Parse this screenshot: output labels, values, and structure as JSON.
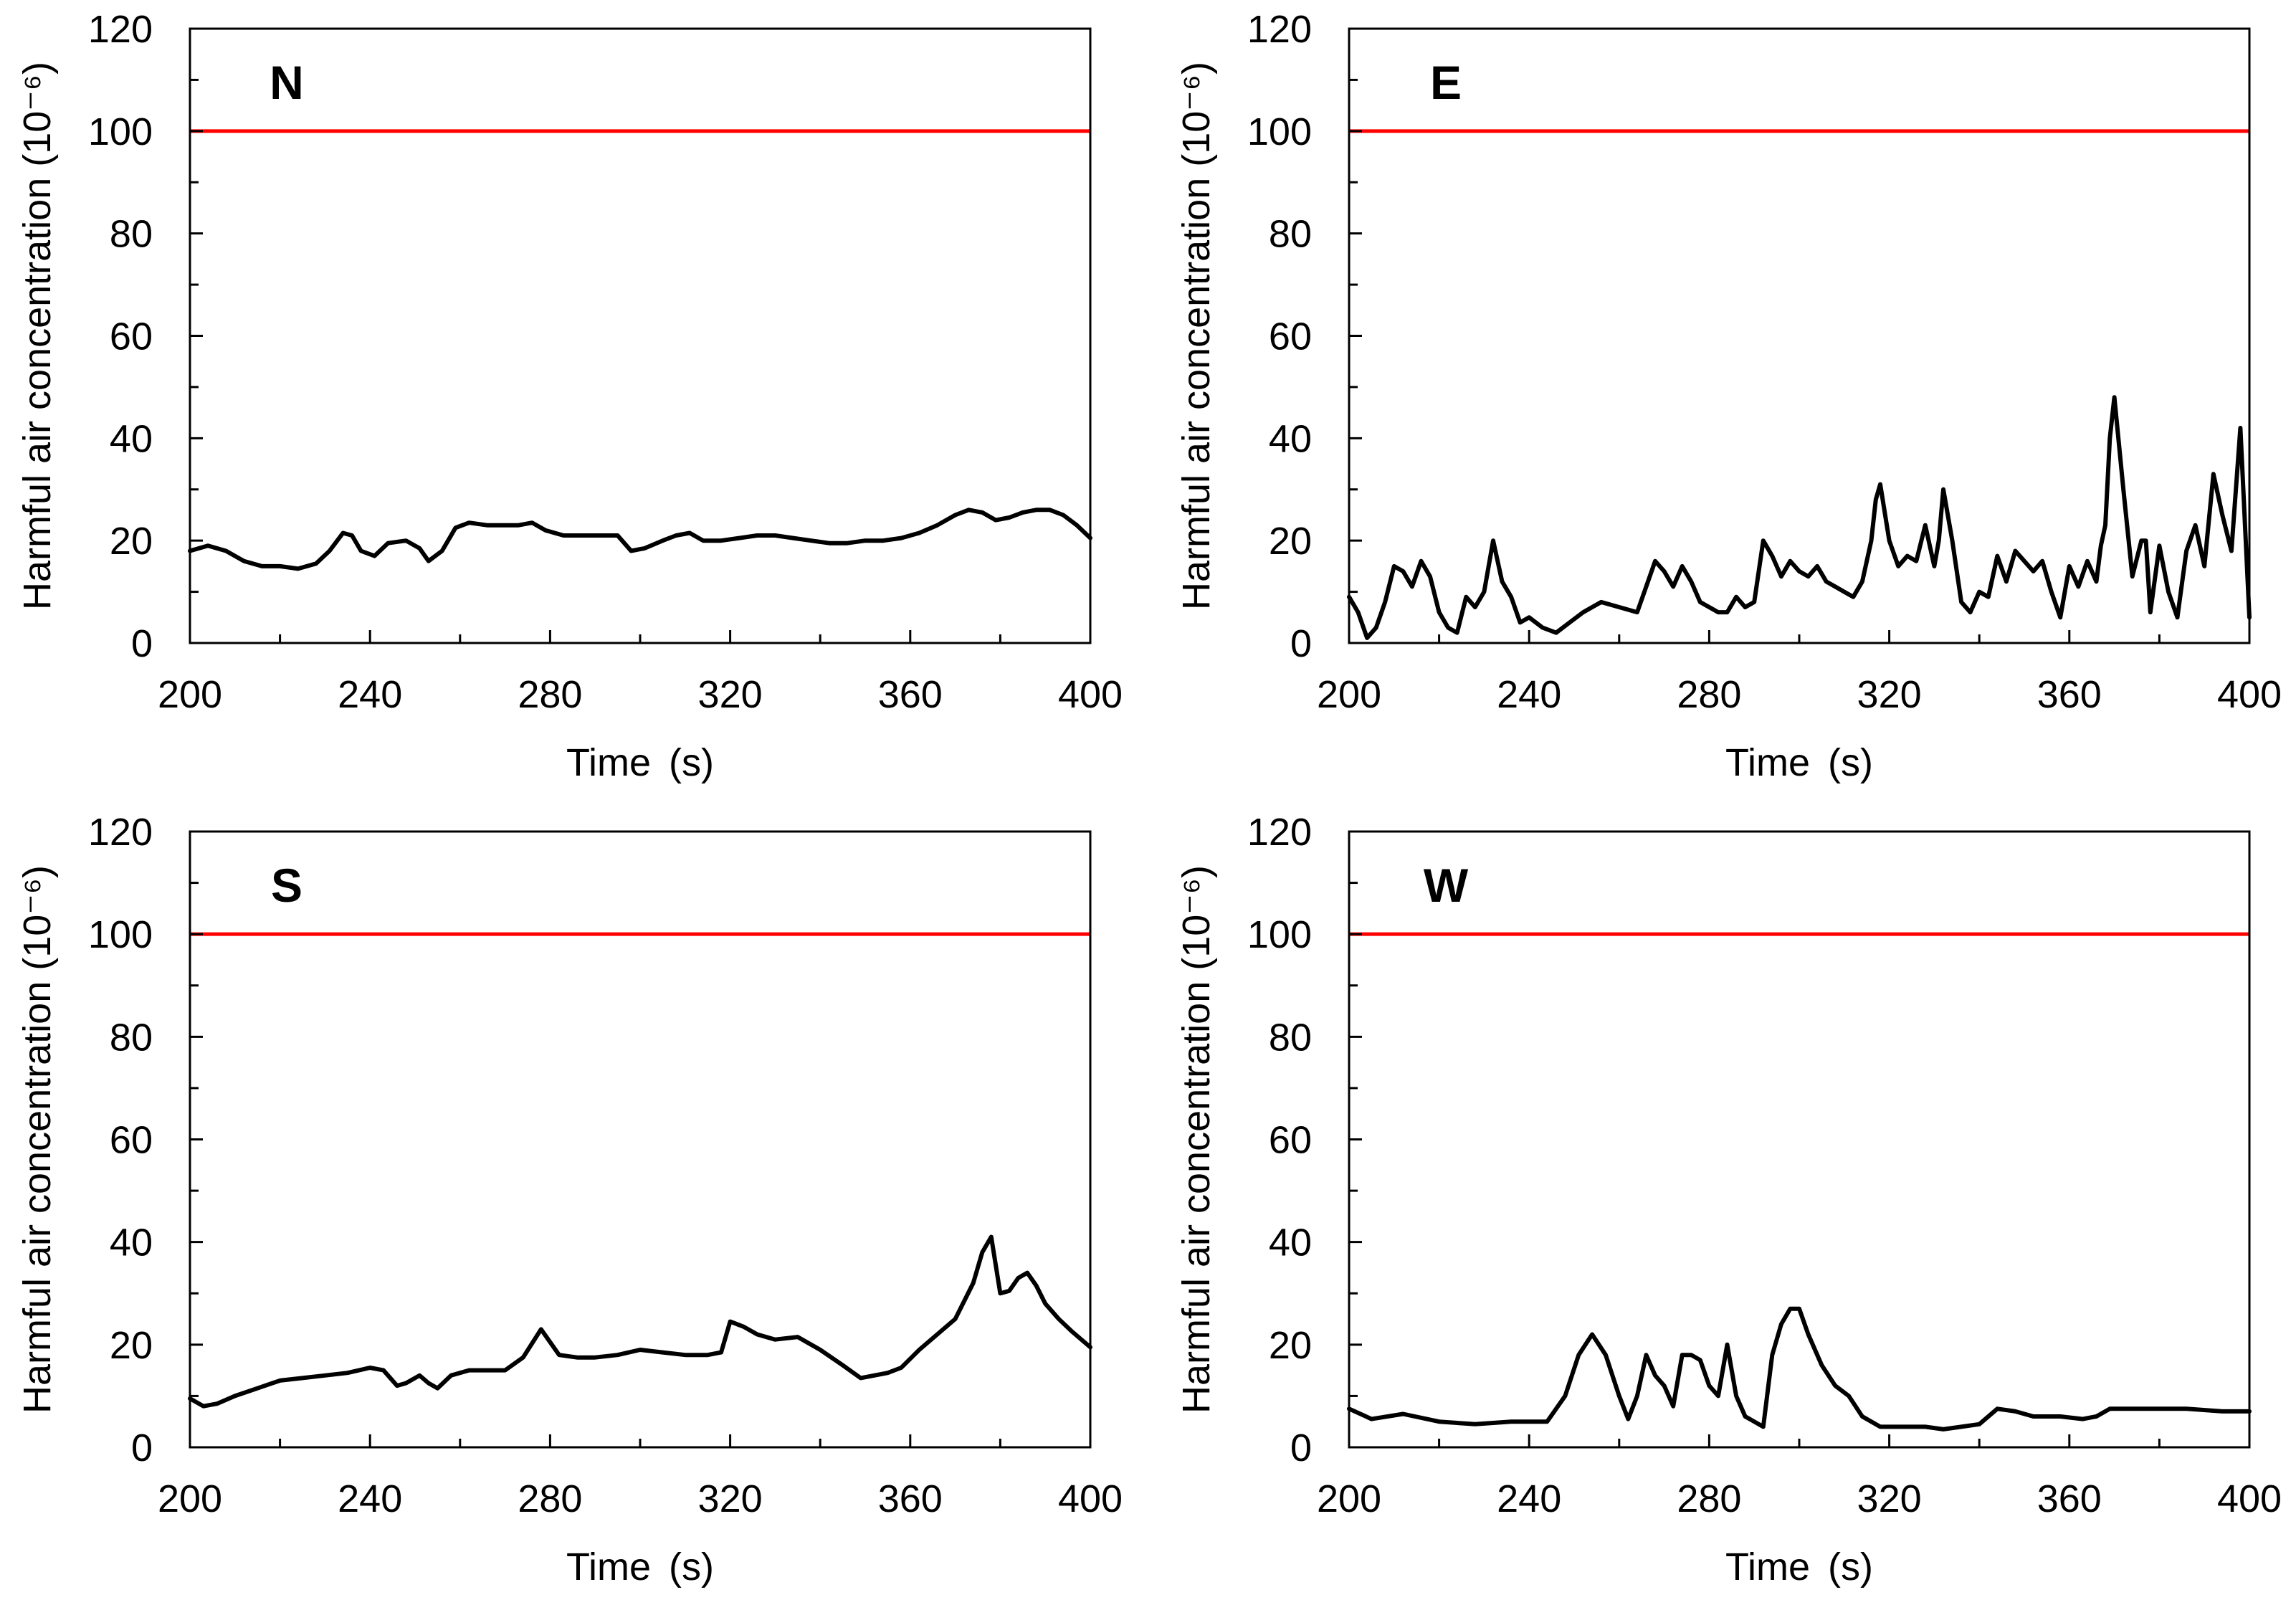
{
  "chart_data": [
    {
      "type": "line",
      "panel_label": "N",
      "xlabel": "Time (s)",
      "ylabel": "Harmful air concentration (10⁻⁶)",
      "xlim": [
        200,
        400
      ],
      "ylim": [
        0,
        120
      ],
      "xticks": [
        200,
        240,
        280,
        320,
        360,
        400
      ],
      "yticks": [
        0,
        20,
        40,
        60,
        80,
        100,
        120
      ],
      "threshold": {
        "value": 100,
        "color": "#ff0000"
      },
      "series": [
        {
          "name": "N",
          "color": "#000000",
          "x": [
            200,
            204,
            208,
            212,
            216,
            220,
            224,
            228,
            231,
            234,
            236,
            238,
            241,
            244,
            248,
            251,
            253,
            256,
            259,
            262,
            266,
            270,
            273,
            276,
            279,
            283,
            287,
            291,
            295,
            298,
            301,
            305,
            308,
            311,
            314,
            318,
            322,
            326,
            330,
            334,
            338,
            342,
            346,
            350,
            354,
            358,
            362,
            366,
            370,
            373,
            376,
            379,
            382,
            385,
            388,
            391,
            394,
            397,
            400
          ],
          "y": [
            18,
            19,
            18,
            16,
            15,
            15,
            14.5,
            15.5,
            18,
            21.5,
            21,
            18,
            17,
            19.5,
            20,
            18.5,
            16,
            18,
            22.5,
            23.5,
            23,
            23,
            23,
            23.5,
            22,
            21,
            21,
            21,
            21,
            18,
            18.5,
            20,
            21,
            21.5,
            20,
            20,
            20.5,
            21,
            21,
            20.5,
            20,
            19.5,
            19.5,
            20,
            20,
            20.5,
            21.5,
            23,
            25,
            26,
            25.5,
            24,
            24.5,
            25.5,
            26,
            26,
            25,
            23,
            20.5
          ]
        }
      ]
    },
    {
      "type": "line",
      "panel_label": "E",
      "xlabel": "Time (s)",
      "ylabel": "Harmful air concentration (10⁻⁶)",
      "xlim": [
        200,
        400
      ],
      "ylim": [
        0,
        120
      ],
      "xticks": [
        200,
        240,
        280,
        320,
        360,
        400
      ],
      "yticks": [
        0,
        20,
        40,
        60,
        80,
        100,
        120
      ],
      "threshold": {
        "value": 100,
        "color": "#ff0000"
      },
      "series": [
        {
          "name": "E",
          "color": "#000000",
          "x": [
            200,
            202,
            204,
            206,
            208,
            210,
            212,
            214,
            216,
            218,
            220,
            222,
            224,
            226,
            228,
            230,
            232,
            234,
            236,
            238,
            240,
            243,
            246,
            249,
            252,
            256,
            260,
            264,
            266,
            268,
            270,
            272,
            274,
            276,
            278,
            280,
            282,
            284,
            286,
            288,
            290,
            292,
            294,
            296,
            298,
            300,
            302,
            304,
            306,
            308,
            310,
            312,
            314,
            316,
            317,
            318,
            320,
            322,
            324,
            326,
            328,
            330,
            331,
            332,
            334,
            336,
            338,
            340,
            342,
            344,
            346,
            348,
            350,
            352,
            354,
            356,
            358,
            360,
            362,
            364,
            366,
            367,
            368,
            369,
            370,
            372,
            374,
            376,
            377,
            378,
            380,
            382,
            384,
            386,
            388,
            390,
            392,
            394,
            396,
            398,
            400
          ],
          "y": [
            9,
            6,
            1,
            3,
            8,
            15,
            14,
            11,
            16,
            13,
            6,
            3,
            2,
            9,
            7,
            10,
            20,
            12,
            9,
            4,
            5,
            3,
            2,
            4,
            6,
            8,
            7,
            6,
            11,
            16,
            14,
            11,
            15,
            12,
            8,
            7,
            6,
            6,
            9,
            7,
            8,
            20,
            17,
            13,
            16,
            14,
            13,
            15,
            12,
            11,
            10,
            9,
            12,
            20,
            28,
            31,
            20,
            15,
            17,
            16,
            23,
            15,
            20,
            30,
            20,
            8,
            6,
            10,
            9,
            17,
            12,
            18,
            16,
            14,
            16,
            10,
            5,
            15,
            11,
            16,
            12,
            19,
            23,
            40,
            48,
            30,
            13,
            20,
            20,
            6,
            19,
            10,
            5,
            18,
            23,
            15,
            33,
            25,
            18,
            42,
            5
          ]
        }
      ]
    },
    {
      "type": "line",
      "panel_label": "S",
      "xlabel": "Time (s)",
      "ylabel": "Harmful air concentration (10⁻⁶)",
      "xlim": [
        200,
        400
      ],
      "ylim": [
        0,
        120
      ],
      "xticks": [
        200,
        240,
        280,
        320,
        360,
        400
      ],
      "yticks": [
        0,
        20,
        40,
        60,
        80,
        100,
        120
      ],
      "threshold": {
        "value": 100,
        "color": "#ff0000"
      },
      "series": [
        {
          "name": "S",
          "color": "#000000",
          "x": [
            200,
            203,
            206,
            210,
            215,
            220,
            225,
            230,
            235,
            240,
            243,
            246,
            248,
            251,
            253,
            255,
            258,
            262,
            266,
            270,
            274,
            278,
            282,
            286,
            290,
            295,
            300,
            305,
            310,
            315,
            318,
            320,
            323,
            326,
            330,
            335,
            340,
            345,
            349,
            352,
            355,
            358,
            362,
            366,
            370,
            374,
            376,
            378,
            380,
            382,
            384,
            386,
            388,
            390,
            393,
            396,
            400
          ],
          "y": [
            9.5,
            8,
            8.5,
            10,
            11.5,
            13,
            13.5,
            14,
            14.5,
            15.5,
            15,
            12,
            12.5,
            14,
            12.5,
            11.5,
            14,
            15,
            15,
            15,
            17.5,
            23,
            18,
            17.5,
            17.5,
            18,
            19,
            18.5,
            18,
            18,
            18.5,
            24.5,
            23.5,
            22,
            21,
            21.5,
            19,
            16,
            13.5,
            14,
            14.5,
            15.5,
            19,
            22,
            25,
            32,
            38,
            41,
            30,
            30.5,
            33,
            34,
            31.5,
            28,
            25,
            22.5,
            19.5
          ]
        }
      ]
    },
    {
      "type": "line",
      "panel_label": "W",
      "xlabel": "Time (s)",
      "ylabel": "Harmful air concentration (10⁻⁶)",
      "xlim": [
        200,
        400
      ],
      "ylim": [
        0,
        120
      ],
      "xticks": [
        200,
        240,
        280,
        320,
        360,
        400
      ],
      "yticks": [
        0,
        20,
        40,
        60,
        80,
        100,
        120
      ],
      "threshold": {
        "value": 100,
        "color": "#ff0000"
      },
      "series": [
        {
          "name": "W",
          "color": "#000000",
          "x": [
            200,
            205,
            212,
            220,
            228,
            236,
            240,
            244,
            248,
            251,
            254,
            257,
            260,
            262,
            264,
            266,
            268,
            270,
            272,
            274,
            276,
            278,
            280,
            282,
            284,
            286,
            288,
            290,
            292,
            294,
            296,
            298,
            300,
            302,
            305,
            308,
            311,
            314,
            318,
            322,
            328,
            332,
            336,
            340,
            344,
            348,
            352,
            358,
            363,
            366,
            369,
            372,
            378,
            386,
            394,
            400
          ],
          "y": [
            7.5,
            5.5,
            6.5,
            5,
            4.5,
            5,
            5,
            5,
            10,
            18,
            22,
            18,
            10,
            5.5,
            10,
            18,
            14,
            12,
            8,
            18,
            18,
            17,
            12,
            10,
            20,
            10,
            6,
            5,
            4,
            18,
            24,
            27,
            27,
            22,
            16,
            12,
            10,
            6,
            4,
            4,
            4,
            3.5,
            4,
            4.5,
            7.5,
            7,
            6,
            6,
            5.5,
            6,
            7.5,
            7.5,
            7.5,
            7.5,
            7,
            7
          ]
        }
      ]
    }
  ]
}
